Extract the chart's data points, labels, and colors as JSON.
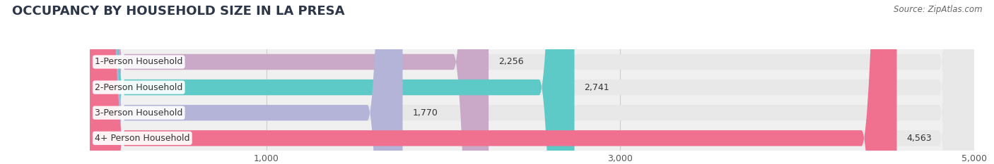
{
  "title": "OCCUPANCY BY HOUSEHOLD SIZE IN LA PRESA",
  "source": "Source: ZipAtlas.com",
  "categories": [
    "1-Person Household",
    "2-Person Household",
    "3-Person Household",
    "4+ Person Household"
  ],
  "values": [
    2256,
    2741,
    1770,
    4563
  ],
  "bar_colors": [
    "#c9a8c8",
    "#5ecac8",
    "#b4b4d8",
    "#f07090"
  ],
  "xlim": [
    0,
    5000
  ],
  "xticks": [
    1000,
    3000,
    5000
  ],
  "title_fontsize": 13,
  "label_fontsize": 9,
  "value_fontsize": 9,
  "source_fontsize": 8.5,
  "bar_height": 0.62,
  "bar_gap": 0.18,
  "background_color": "#ffffff",
  "plot_bg_color": "#f0f0f0",
  "bar_bg_color": "#e8e8e8"
}
